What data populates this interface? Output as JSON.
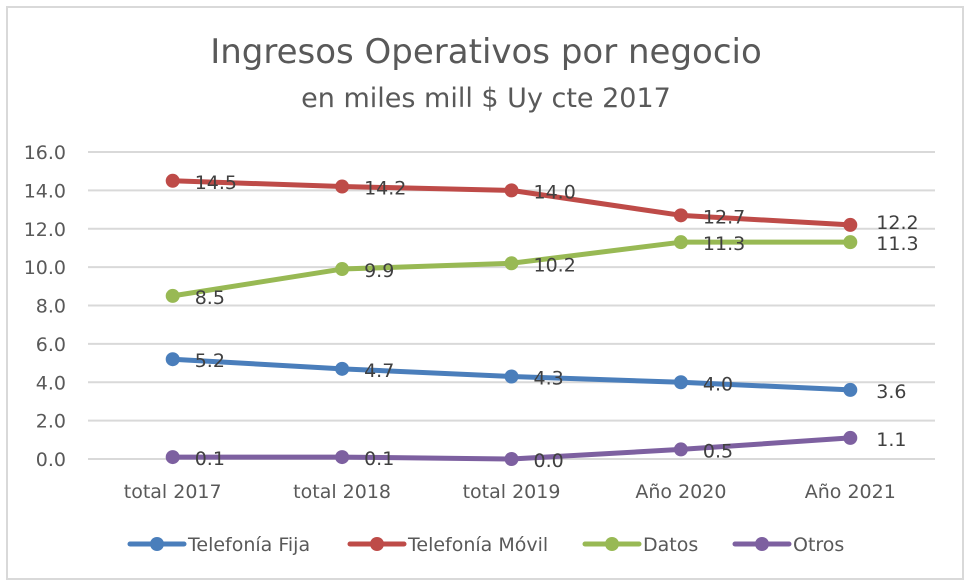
{
  "chart_data": {
    "type": "line",
    "title": "Ingresos Operativos por negocio",
    "subtitle": "en miles mill $ Uy cte 2017",
    "xlabel": "",
    "ylabel": "",
    "categories": [
      "total 2017",
      "total 2018",
      "total 2019",
      "Año 2020",
      "Año 2021"
    ],
    "ylim": [
      0,
      16
    ],
    "yticks": [
      "0.0",
      "2.0",
      "4.0",
      "6.0",
      "8.0",
      "10.0",
      "12.0",
      "14.0",
      "16.0"
    ],
    "grid": true,
    "legend_position": "bottom",
    "series": [
      {
        "name": "Telefonía Fija",
        "color": "#4a7ebb",
        "values": [
          5.2,
          4.7,
          4.3,
          4.0,
          3.6
        ],
        "labels": [
          "5.2",
          "4.7",
          "4.3",
          "4.0",
          "3.6"
        ]
      },
      {
        "name": "Telefonía Móvil",
        "color": "#be4b48",
        "values": [
          14.5,
          14.2,
          14.0,
          12.7,
          12.2
        ],
        "labels": [
          "14.5",
          "14.2",
          "14.0",
          "12.7",
          "12.2"
        ]
      },
      {
        "name": "Datos",
        "color": "#98b954",
        "values": [
          8.5,
          9.9,
          10.2,
          11.3,
          11.3
        ],
        "labels": [
          "8.5",
          "9.9",
          "10.2",
          "11.3",
          "11.3"
        ]
      },
      {
        "name": "Otros",
        "color": "#7d60a0",
        "values": [
          0.1,
          0.1,
          0.0,
          0.5,
          1.1
        ],
        "labels": [
          "0.1",
          "0.1",
          "0.0",
          "0.5",
          "1.1"
        ]
      }
    ]
  }
}
